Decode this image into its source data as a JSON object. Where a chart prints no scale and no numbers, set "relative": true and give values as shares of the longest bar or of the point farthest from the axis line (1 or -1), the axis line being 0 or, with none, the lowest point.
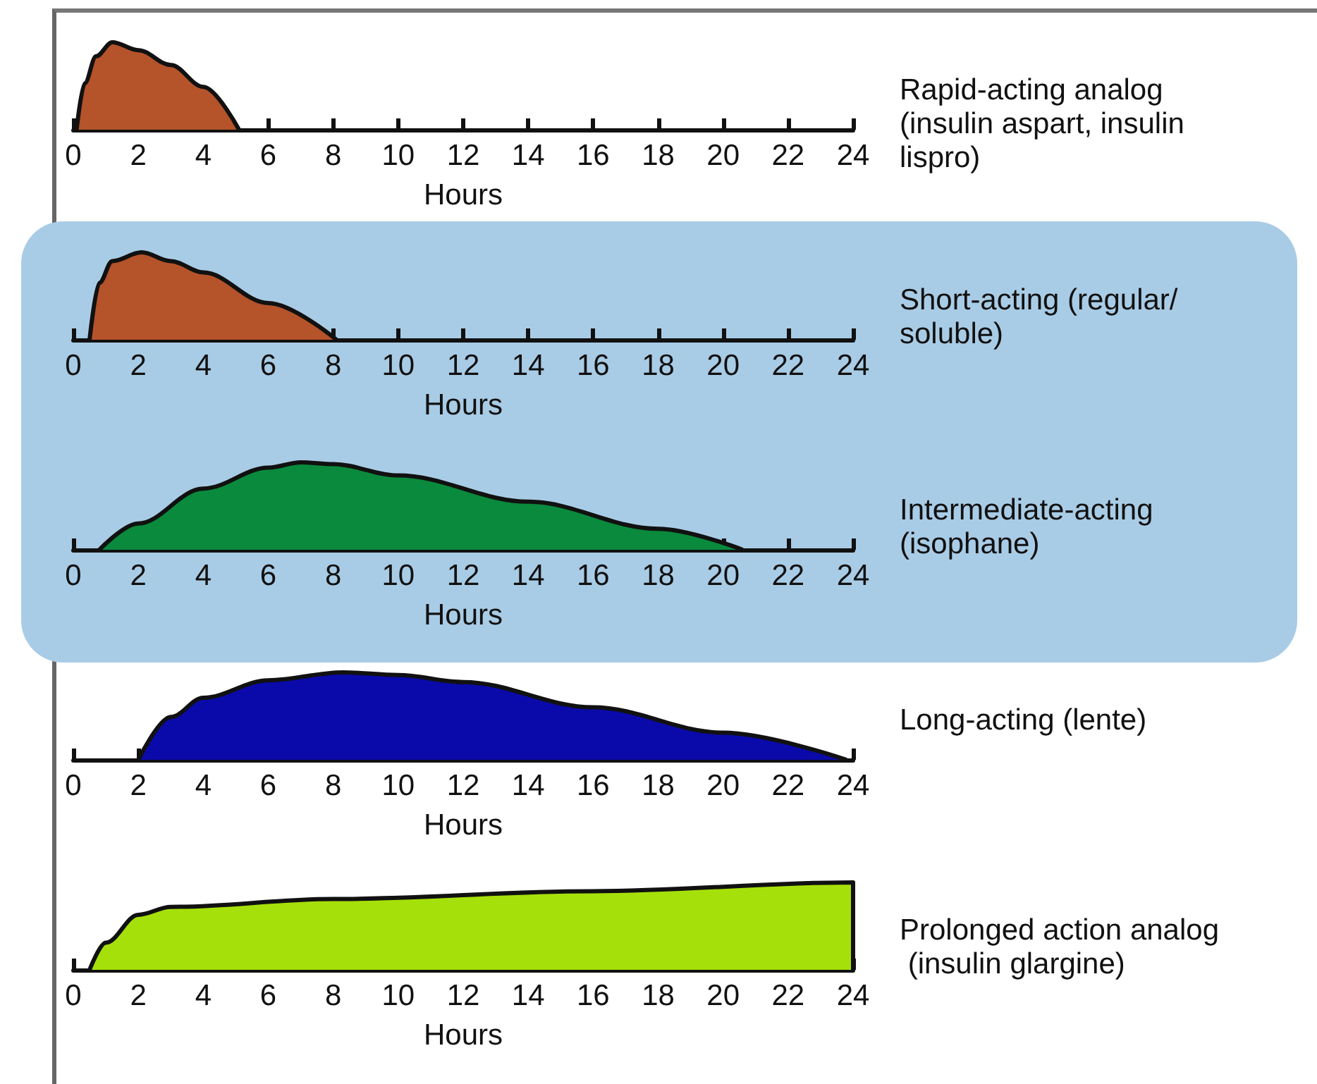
{
  "chart_data": [
    {
      "type": "area",
      "annotations": [
        "Rapid-acting analog (insulin aspart, insulin lispro)"
      ],
      "xlabel": "Hours",
      "relative": true,
      "marker": "none",
      "color": "#b5532a",
      "xlim": [
        0,
        24
      ],
      "xticks": [
        0,
        2,
        4,
        6,
        8,
        10,
        12,
        14,
        16,
        18,
        20,
        22,
        24
      ],
      "x": [
        0.1,
        0.35,
        0.7,
        1.2,
        2,
        3,
        4,
        5.1
      ],
      "values": [
        0,
        0.53,
        0.84,
        1,
        0.91,
        0.74,
        0.49,
        0
      ]
    },
    {
      "type": "area",
      "annotations": [
        "Short-acting (regular/soluble)"
      ],
      "xlabel": "Hours",
      "relative": true,
      "marker": "none",
      "color": "#b5532a",
      "xlim": [
        0,
        24
      ],
      "xticks": [
        0,
        2,
        4,
        6,
        8,
        10,
        12,
        14,
        16,
        18,
        20,
        22,
        24
      ],
      "x": [
        0.5,
        0.8,
        1.2,
        2.1,
        3,
        4,
        6,
        8.1
      ],
      "values": [
        0,
        0.65,
        0.9,
        1,
        0.9,
        0.77,
        0.42,
        0
      ]
    },
    {
      "type": "area",
      "annotations": [
        "Intermediate-acting (isophane)"
      ],
      "xlabel": "Hours",
      "relative": true,
      "marker": "none",
      "color": "#0a8a3c",
      "xlim": [
        0,
        24
      ],
      "xticks": [
        0,
        2,
        4,
        6,
        8,
        10,
        12,
        14,
        16,
        18,
        20,
        22,
        24
      ],
      "x": [
        0.8,
        2,
        4,
        6,
        7,
        8,
        10,
        14,
        18,
        20.6
      ],
      "values": [
        0,
        0.3,
        0.7,
        0.94,
        1,
        0.98,
        0.85,
        0.55,
        0.24,
        0
      ]
    },
    {
      "type": "area",
      "annotations": [
        "Long-acting (lente)"
      ],
      "xlabel": "Hours",
      "relative": true,
      "marker": "none",
      "color": "#0a0aaa",
      "xlim": [
        0,
        24
      ],
      "xticks": [
        0,
        2,
        4,
        6,
        8,
        10,
        12,
        14,
        16,
        18,
        20,
        22,
        24
      ],
      "x": [
        2,
        3,
        4,
        6,
        8.3,
        10,
        12,
        16,
        20,
        23.8
      ],
      "values": [
        0,
        0.49,
        0.71,
        0.91,
        1,
        0.97,
        0.89,
        0.6,
        0.31,
        0
      ]
    },
    {
      "type": "area",
      "annotations": [
        "Prolonged action analog (insulin glargine)"
      ],
      "xlabel": "Hours",
      "relative": true,
      "marker": "none",
      "color": "#a6e00a",
      "xlim": [
        0,
        24
      ],
      "xticks": [
        0,
        2,
        4,
        6,
        8,
        10,
        12,
        14,
        16,
        18,
        20,
        22,
        24
      ],
      "x": [
        0.5,
        1,
        2,
        3,
        8,
        16,
        24,
        24
      ],
      "values": [
        0,
        0.31,
        0.63,
        0.72,
        0.81,
        0.9,
        1,
        0
      ]
    }
  ]
}
